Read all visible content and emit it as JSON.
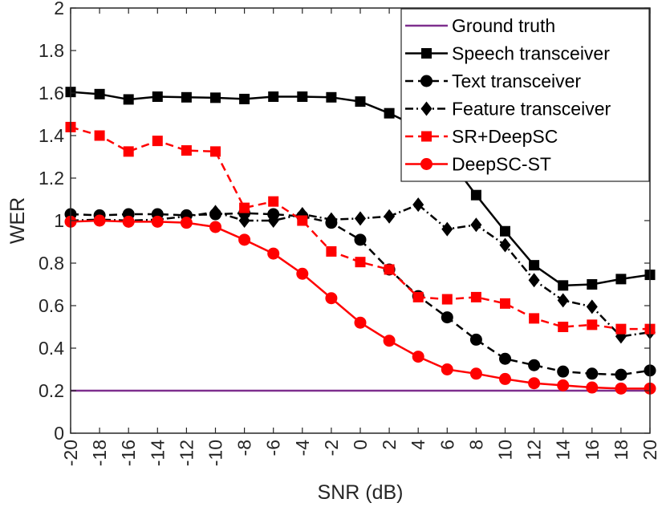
{
  "chart_data": {
    "type": "line",
    "title": "",
    "xlabel": "SNR (dB)",
    "ylabel": "WER",
    "xlim": [
      -20,
      20
    ],
    "ylim": [
      0,
      2
    ],
    "x": [
      -20,
      -18,
      -16,
      -14,
      -12,
      -10,
      -8,
      -6,
      -4,
      -2,
      0,
      2,
      4,
      6,
      8,
      10,
      12,
      14,
      16,
      18,
      20
    ],
    "xticks": [
      "-20",
      "-18",
      "-16",
      "-14",
      "-12",
      "-10",
      "-8",
      "-6",
      "-4",
      "-2",
      "0",
      "2",
      "4",
      "6",
      "8",
      "10",
      "12",
      "14",
      "16",
      "18",
      "20"
    ],
    "yticks": [
      "0",
      "0.2",
      "0.4",
      "0.6",
      "0.8",
      "1",
      "1.2",
      "1.4",
      "1.6",
      "1.8",
      "2"
    ],
    "ytick_values": [
      0,
      0.2,
      0.4,
      0.6,
      0.8,
      1.0,
      1.2,
      1.4,
      1.6,
      1.8,
      2.0
    ],
    "legend_position": "top-right",
    "series": [
      {
        "name": "Ground truth",
        "color": "#7E2F8E",
        "dash": "solid",
        "marker": "none",
        "values": [
          0.2,
          0.2,
          0.2,
          0.2,
          0.2,
          0.2,
          0.2,
          0.2,
          0.2,
          0.2,
          0.2,
          0.2,
          0.2,
          0.2,
          0.2,
          0.2,
          0.2,
          0.2,
          0.2,
          0.2,
          0.2
        ]
      },
      {
        "name": "Speech transceiver",
        "color": "#000000",
        "dash": "solid",
        "marker": "square",
        "values": [
          1.605,
          1.595,
          1.57,
          1.583,
          1.58,
          1.578,
          1.572,
          1.583,
          1.583,
          1.58,
          1.56,
          1.505,
          1.44,
          1.3,
          1.12,
          0.95,
          0.79,
          0.695,
          0.7,
          0.725,
          0.745
        ]
      },
      {
        "name": "Text transceiver",
        "color": "#000000",
        "dash": "dashed",
        "marker": "circle",
        "values": [
          1.03,
          1.025,
          1.03,
          1.03,
          1.025,
          1.03,
          1.035,
          1.03,
          1.02,
          0.99,
          0.91,
          0.77,
          0.645,
          0.545,
          0.44,
          0.35,
          0.32,
          0.29,
          0.28,
          0.275,
          0.295
        ]
      },
      {
        "name": "Feature transceiver",
        "color": "#000000",
        "dash": "dashdot",
        "marker": "diamond",
        "values": [
          1.0,
          1.005,
          1.0,
          1.005,
          1.02,
          1.04,
          1.0,
          1.0,
          1.03,
          1.005,
          1.01,
          1.02,
          1.075,
          0.96,
          0.98,
          0.885,
          0.72,
          0.625,
          0.595,
          0.455,
          0.475
        ]
      },
      {
        "name": "SR+DeepSC",
        "color": "#FF0000",
        "dash": "dashed",
        "marker": "square",
        "values": [
          1.44,
          1.4,
          1.325,
          1.375,
          1.33,
          1.325,
          1.06,
          1.09,
          1.0,
          0.855,
          0.805,
          0.77,
          0.64,
          0.63,
          0.64,
          0.61,
          0.54,
          0.5,
          0.51,
          0.49,
          0.49
        ]
      },
      {
        "name": "DeepSC-ST",
        "color": "#FF0000",
        "dash": "solid",
        "marker": "circle",
        "values": [
          0.995,
          1.0,
          0.995,
          0.995,
          0.99,
          0.97,
          0.91,
          0.845,
          0.75,
          0.635,
          0.52,
          0.435,
          0.36,
          0.3,
          0.28,
          0.255,
          0.235,
          0.225,
          0.215,
          0.21,
          0.21
        ]
      }
    ]
  }
}
